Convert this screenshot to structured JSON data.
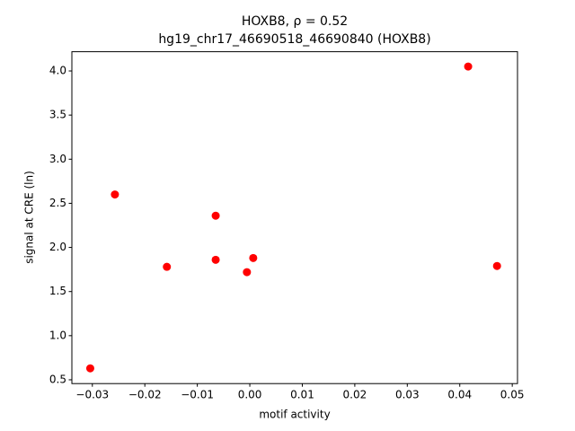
{
  "chart_data": {
    "type": "scatter",
    "title": "HOXB8, ρ = 0.52",
    "subtitle": "hg19_chr17_46690518_46690840 (HOXB8)",
    "x_label": "motif activity",
    "y_label": "signal at CRE (ln)",
    "color": "#ff0000",
    "x": [
      -0.0304,
      -0.0257,
      -0.0158,
      -0.0065,
      -0.0065,
      -0.00055,
      0.00065,
      0.0416,
      0.0471
    ],
    "y": [
      0.63,
      2.6,
      1.78,
      2.36,
      1.86,
      1.72,
      1.88,
      4.05,
      1.79
    ],
    "xlim": [
      -0.0339,
      0.051
    ],
    "ylim": [
      0.457,
      4.218
    ],
    "xticks": [
      {
        "value": -0.03,
        "label": "−0.03"
      },
      {
        "value": -0.02,
        "label": "−0.02"
      },
      {
        "value": -0.01,
        "label": "−0.01"
      },
      {
        "value": 0,
        "label": "0.00"
      },
      0.01,
      0.02,
      0.03,
      0.04,
      0.05
    ],
    "yticks": [
      0.5,
      {
        "value": 1,
        "label": "1.0"
      },
      1.5,
      {
        "value": 2,
        "label": "2.0"
      },
      2.5,
      {
        "value": 3,
        "label": "3.0"
      },
      3.5,
      {
        "value": 4,
        "label": "4.0"
      }
    ]
  }
}
